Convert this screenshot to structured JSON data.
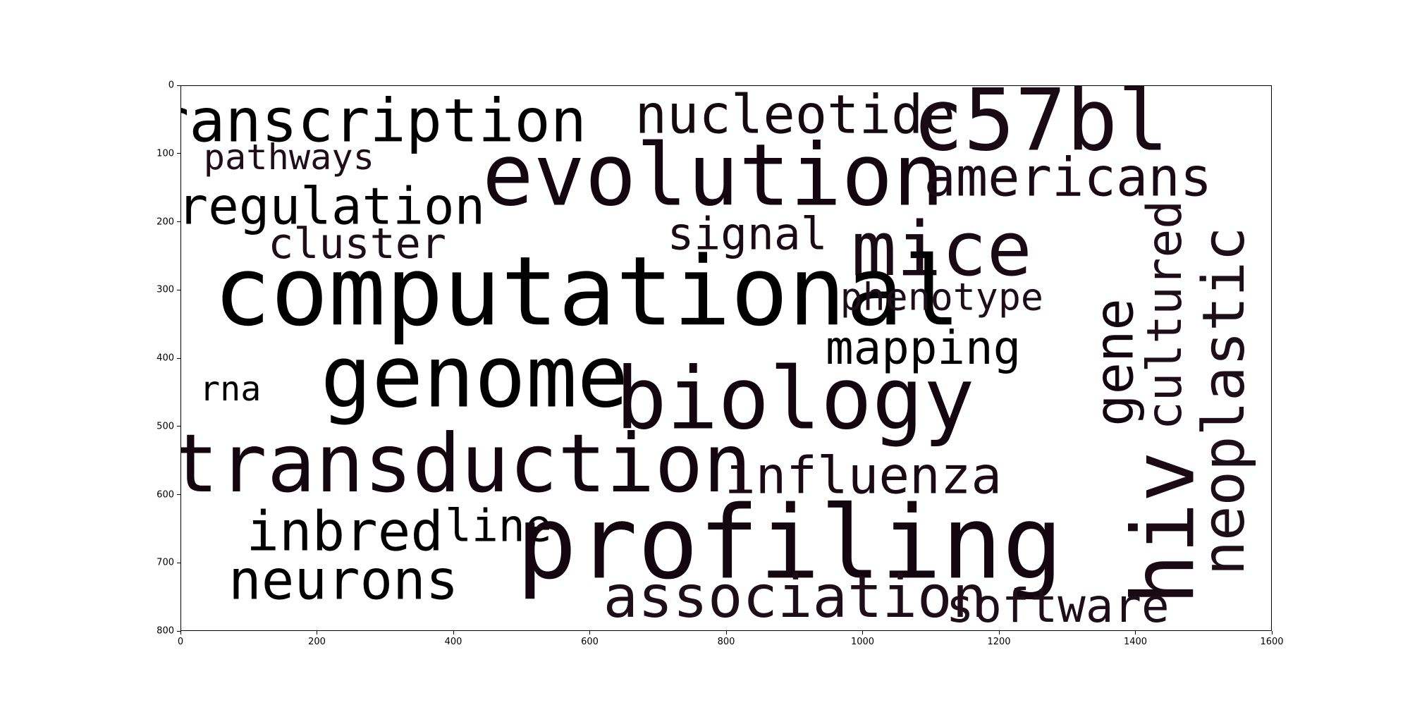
{
  "chart_data": {
    "type": "wordcloud",
    "xlim": [
      0,
      1600
    ],
    "ylim": [
      800,
      0
    ],
    "x_ticks": [
      0,
      200,
      400,
      600,
      800,
      1000,
      1200,
      1400,
      1600
    ],
    "y_ticks": [
      0,
      100,
      200,
      300,
      400,
      500,
      600,
      700,
      800
    ],
    "words": [
      {
        "text": "transcription",
        "x": 250,
        "y": 52,
        "size": 88,
        "color": "#000000"
      },
      {
        "text": "nucleotide",
        "x": 900,
        "y": 42,
        "size": 78,
        "color": "#140a10"
      },
      {
        "text": "c57bl",
        "x": 1260,
        "y": 52,
        "size": 125,
        "color": "#1a0a14"
      },
      {
        "text": "pathways",
        "x": 158,
        "y": 104,
        "size": 52,
        "color": "#1e0e18"
      },
      {
        "text": "evolution",
        "x": 780,
        "y": 132,
        "size": 125,
        "color": "#14060e"
      },
      {
        "text": "americans",
        "x": 1300,
        "y": 134,
        "size": 78,
        "color": "#1a0a14"
      },
      {
        "text": "regulation",
        "x": 220,
        "y": 178,
        "size": 75,
        "color": "#000000"
      },
      {
        "text": "cluster",
        "x": 258,
        "y": 232,
        "size": 62,
        "color": "#1e0e18"
      },
      {
        "text": "signal",
        "x": 830,
        "y": 218,
        "size": 65,
        "color": "#1a0a14"
      },
      {
        "text": "mice",
        "x": 1115,
        "y": 240,
        "size": 110,
        "color": "#1a0a14"
      },
      {
        "text": "computational",
        "x": 595,
        "y": 302,
        "size": 140,
        "color": "#000000"
      },
      {
        "text": "phenotype",
        "x": 1115,
        "y": 310,
        "size": 55,
        "color": "#1e0e18"
      },
      {
        "text": "gene",
        "x": 1368,
        "y": 405,
        "size": 78,
        "color": "#14060e",
        "rotate": true
      },
      {
        "text": "cultured",
        "x": 1442,
        "y": 336,
        "size": 70,
        "color": "#1e0e18",
        "rotate": true
      },
      {
        "text": "neoplastic",
        "x": 1530,
        "y": 462,
        "size": 85,
        "color": "#1e0e18",
        "rotate": true
      },
      {
        "text": "mapping",
        "x": 1088,
        "y": 384,
        "size": 68,
        "color": "#000000"
      },
      {
        "text": "genome",
        "x": 430,
        "y": 428,
        "size": 125,
        "color": "#000000"
      },
      {
        "text": "rna",
        "x": 72,
        "y": 444,
        "size": 50,
        "color": "#000000"
      },
      {
        "text": "biology",
        "x": 900,
        "y": 460,
        "size": 125,
        "color": "#14060e"
      },
      {
        "text": "hiv",
        "x": 1442,
        "y": 648,
        "size": 125,
        "color": "#1a0a14",
        "rotate": true
      },
      {
        "text": "transduction",
        "x": 410,
        "y": 554,
        "size": 118,
        "color": "#14060e"
      },
      {
        "text": "influenza",
        "x": 1000,
        "y": 573,
        "size": 75,
        "color": "#1a0a14"
      },
      {
        "text": "inbred",
        "x": 240,
        "y": 654,
        "size": 80,
        "color": "#000000"
      },
      {
        "text": "line",
        "x": 465,
        "y": 646,
        "size": 65,
        "color": "#000000"
      },
      {
        "text": "profiling",
        "x": 892,
        "y": 670,
        "size": 148,
        "color": "#14060e"
      },
      {
        "text": "neurons",
        "x": 238,
        "y": 726,
        "size": 80,
        "color": "#000000"
      },
      {
        "text": "association",
        "x": 900,
        "y": 750,
        "size": 85,
        "color": "#1e0e18"
      },
      {
        "text": "software",
        "x": 1285,
        "y": 763,
        "size": 68,
        "color": "#1e0e18"
      }
    ]
  }
}
